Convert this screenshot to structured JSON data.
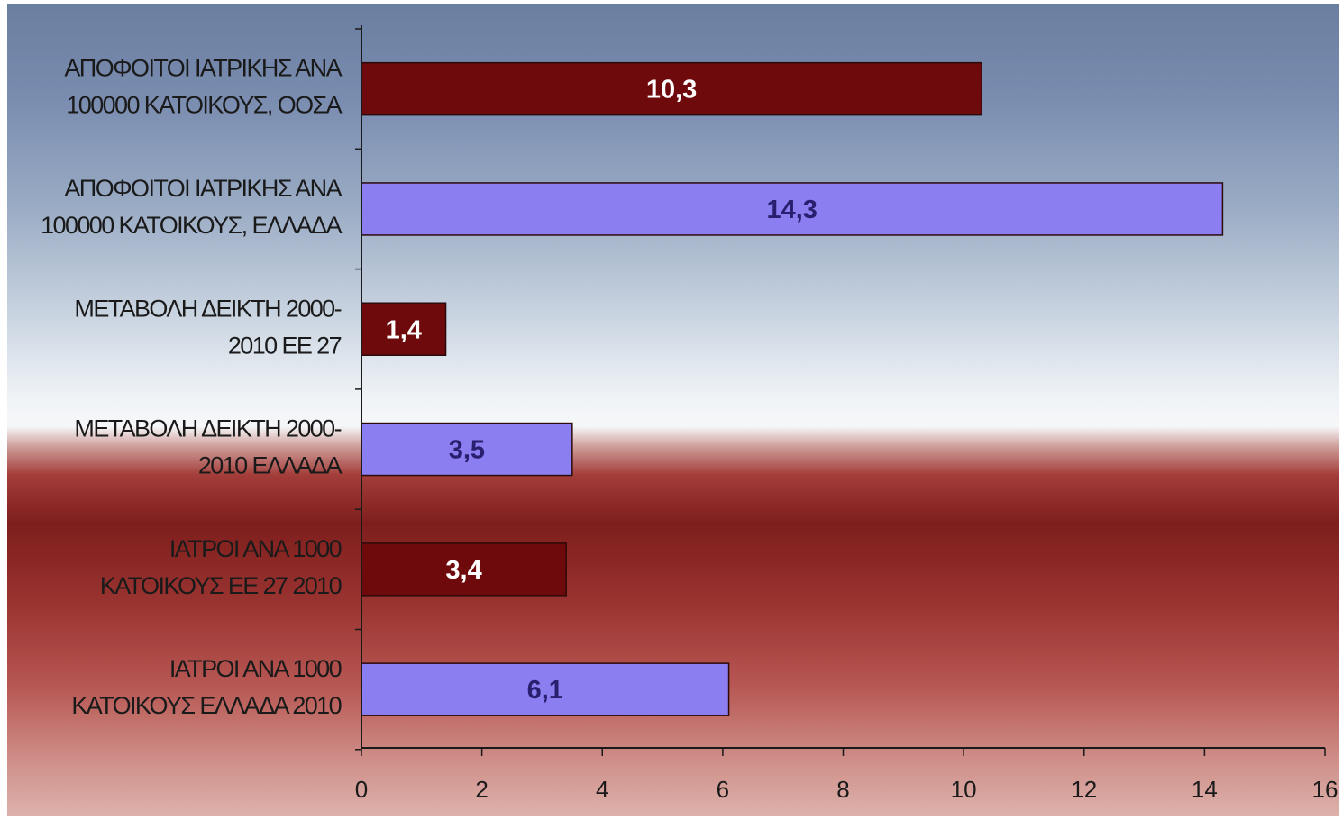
{
  "chart_data": {
    "type": "bar",
    "orientation": "horizontal",
    "categories": [
      [
        "ΑΠΟΦΟΙΤΟΙ ΙΑΤΡΙΚΗΣ ΑΝΑ",
        "100000 ΚΑΤΟΙΚΟΥΣ, ΟΟΣΑ"
      ],
      [
        "ΑΠΟΦΟΙΤΟΙ ΙΑΤΡΙΚΗΣ ΑΝΑ",
        "100000 ΚΑΤΟΙΚΟΥΣ, ΕΛΛΑΔΑ"
      ],
      [
        "ΜΕΤΑΒΟΛΗ ΔΕΙΚΤΗ 2000-",
        "2010 ΕΕ 27"
      ],
      [
        "ΜΕΤΑΒΟΛΗ ΔΕΙΚΤΗ 2000-",
        "2010 ΕΛΛΑΔΑ"
      ],
      [
        "ΙΑΤΡΟΙ ΑΝΑ 1000",
        "ΚΑΤΟΙΚΟΥΣ ΕΕ 27 2010"
      ],
      [
        "ΙΑΤΡΟΙ ΑΝΑ 1000",
        "ΚΑΤΟΙΚΟΥΣ ΕΛΛΑΔΑ 2010"
      ]
    ],
    "values": [
      10.3,
      14.3,
      1.4,
      3.5,
      3.4,
      6.1
    ],
    "value_labels": [
      "10,3",
      "14,3",
      "1,4",
      "3,5",
      "3,4",
      "6,1"
    ],
    "bar_colors": [
      "#6e0a0c",
      "#8a7ef0",
      "#6e0a0c",
      "#8a7ef0",
      "#6e0a0c",
      "#8a7ef0"
    ],
    "value_label_colors": [
      "#ffffff",
      "#2a1f6e",
      "#ffffff",
      "#2a1f6e",
      "#ffffff",
      "#2a1f6e"
    ],
    "xlim": [
      0,
      16
    ],
    "xticks": [
      0,
      2,
      4,
      6,
      8,
      10,
      12,
      14,
      16
    ],
    "title": "",
    "xlabel": "",
    "ylabel": "",
    "grid": false,
    "legend": "none"
  }
}
